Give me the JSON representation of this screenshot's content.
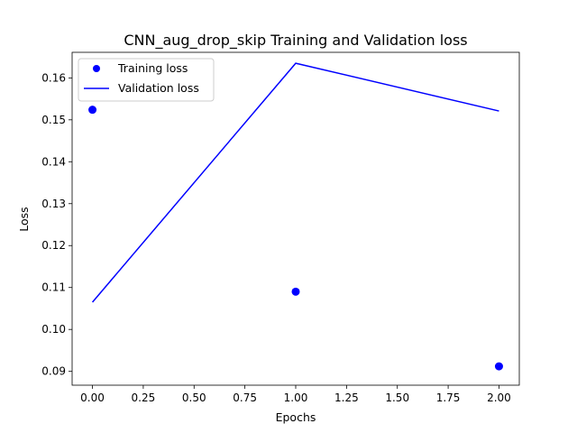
{
  "chart_data": {
    "type": "line",
    "title": "CNN_aug_drop_skip Training and Validation loss",
    "xlabel": "Epochs",
    "ylabel": "Loss",
    "xlim": [
      -0.1,
      2.1
    ],
    "ylim": [
      0.0867,
      0.1661
    ],
    "x_ticks": [
      0.0,
      0.25,
      0.5,
      0.75,
      1.0,
      1.25,
      1.5,
      1.75,
      2.0
    ],
    "x_tick_labels": [
      "0.00",
      "0.25",
      "0.50",
      "0.75",
      "1.00",
      "1.25",
      "1.50",
      "1.75",
      "2.00"
    ],
    "y_ticks": [
      0.09,
      0.1,
      0.11,
      0.12,
      0.13,
      0.14,
      0.15,
      0.16
    ],
    "y_tick_labels": [
      "0.09",
      "0.10",
      "0.11",
      "0.12",
      "0.13",
      "0.14",
      "0.15",
      "0.16"
    ],
    "grid": false,
    "legend_position": "upper-left",
    "series": [
      {
        "name": "Training loss",
        "style": "points",
        "color": "#0000ff",
        "x": [
          0,
          1,
          2
        ],
        "y": [
          0.1524,
          0.109,
          0.0912
        ]
      },
      {
        "name": "Validation loss",
        "style": "line",
        "color": "#0000ff",
        "x": [
          0,
          1,
          2
        ],
        "y": [
          0.1065,
          0.1635,
          0.1521
        ]
      }
    ]
  }
}
